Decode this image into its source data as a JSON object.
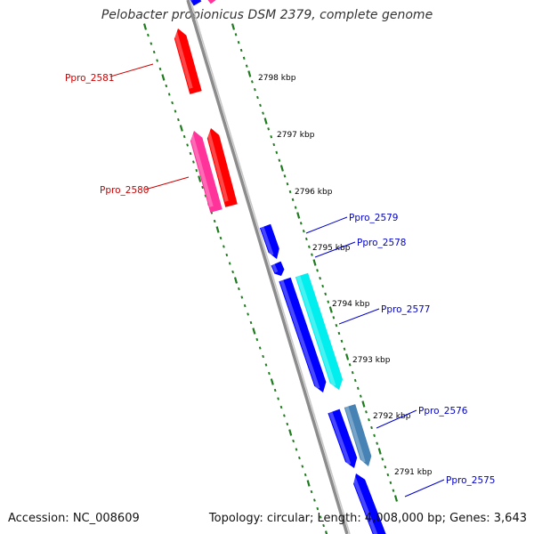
{
  "title": "Pelobacter propionicus DSM 2379, complete genome",
  "footer": {
    "accession": "Accession: NC_008609",
    "topology_info": "Topology: circular; Length: 4,008,000 bp; Genes: 3,643"
  },
  "colors": {
    "backbone": "#8c8c8c",
    "tick": "#1e7b1e",
    "reverse_strand_label": "#cc0000",
    "forward_strand_label": "#0000cc",
    "gene_red": "#ff0000",
    "gene_pink": "#ff3399",
    "gene_blue": "#0000ff",
    "gene_cyan": "#00eeee",
    "gene_steelblue": "#4682b4"
  },
  "scale_labels": [
    "2798 kbp",
    "2797 kbp",
    "2796 kbp",
    "2795 kbp",
    "2794 kbp",
    "2793 kbp",
    "2792 kbp",
    "2791 kbp"
  ],
  "gene_labels": [
    {
      "name": "Ppro_2581",
      "strand": "reverse"
    },
    {
      "name": "Ppro_2580",
      "strand": "reverse"
    },
    {
      "name": "Ppro_2579",
      "strand": "forward"
    },
    {
      "name": "Ppro_2578",
      "strand": "forward"
    },
    {
      "name": "Ppro_2577",
      "strand": "forward"
    },
    {
      "name": "Ppro_2576",
      "strand": "forward"
    },
    {
      "name": "Ppro_2575",
      "strand": "forward"
    }
  ]
}
